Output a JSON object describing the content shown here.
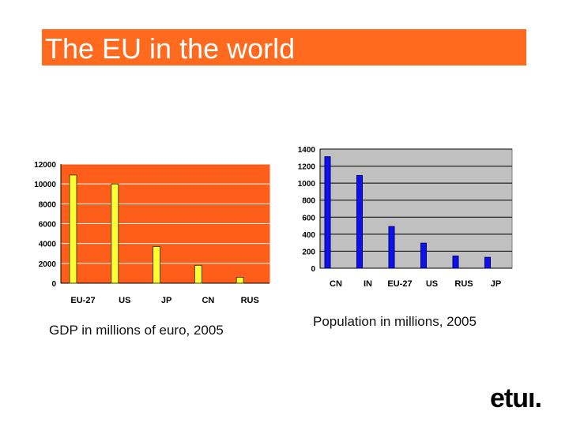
{
  "header": {
    "title": "The EU in the world"
  },
  "colors": {
    "title_bg": "#ff6a1f",
    "gdp_plot_bg": "#ff5e1a",
    "gdp_bar": "#ffff33",
    "pop_plot_bg": "#c0c0c0",
    "pop_bar": "#1010ee"
  },
  "captions": {
    "gdp": "GDP in millions of euro, 2005",
    "population": "Population in millions, 2005"
  },
  "logo": {
    "text": "etuı."
  },
  "chart_data": [
    {
      "id": "gdp",
      "type": "bar",
      "title": "",
      "xlabel": "",
      "ylabel": "",
      "categories": [
        "EU-27",
        "US",
        "JP",
        "CN",
        "RUS"
      ],
      "values": [
        10900,
        10000,
        3700,
        1800,
        600
      ],
      "ylim": [
        0,
        12000
      ],
      "yticks": [
        "0",
        "2000",
        "4000",
        "6000",
        "8000",
        "10000",
        "12000"
      ],
      "grid": true
    },
    {
      "id": "population",
      "type": "bar",
      "title": "",
      "xlabel": "",
      "ylabel": "",
      "categories": [
        "CN",
        "IN",
        "EU-27",
        "US",
        "RUS",
        "JP"
      ],
      "values": [
        1310,
        1090,
        490,
        295,
        143,
        128
      ],
      "ylim": [
        0,
        1400
      ],
      "yticks": [
        "0",
        "200",
        "400",
        "600",
        "800",
        "1000",
        "1200",
        "1400"
      ],
      "grid": true
    }
  ]
}
